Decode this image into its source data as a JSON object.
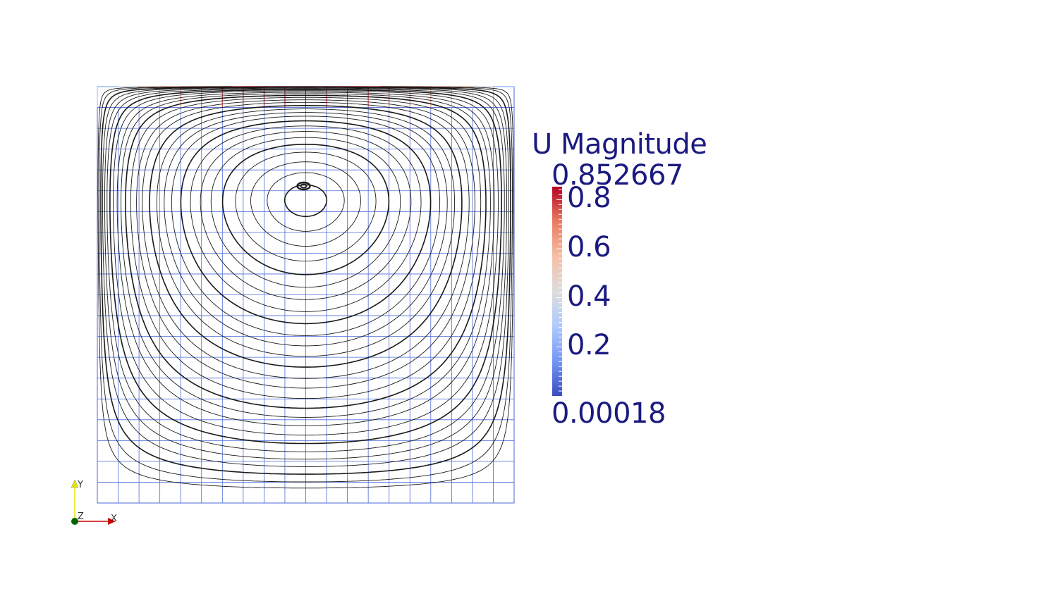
{
  "colorbar": {
    "title": "U Magnitude",
    "max_label": "0.852667",
    "min_label": "0.00018",
    "min": 0.00018,
    "max": 0.852667,
    "ticks": [
      {
        "value": 0.8,
        "label": "0.8"
      },
      {
        "value": 0.6,
        "label": "0.6"
      },
      {
        "value": 0.4,
        "label": "0.4"
      },
      {
        "value": 0.2,
        "label": "0.2"
      }
    ],
    "colormap": [
      "#3b4cc0",
      "#7396f5",
      "#b0cbfc",
      "#dddddd",
      "#f6bfa6",
      "#ea7b60",
      "#b40426"
    ]
  },
  "mesh": {
    "divisions": 20,
    "color": "#4a6ad8"
  },
  "orientation_axes": {
    "x_label": "X",
    "y_label": "Y",
    "z_label": "Z",
    "x_color": "#cc0000",
    "y_color": "#e6e600",
    "z_color": "#006600"
  },
  "streamlines": {
    "color": "#1a1a1a",
    "vortex_center": [
      0.5,
      0.765
    ]
  }
}
